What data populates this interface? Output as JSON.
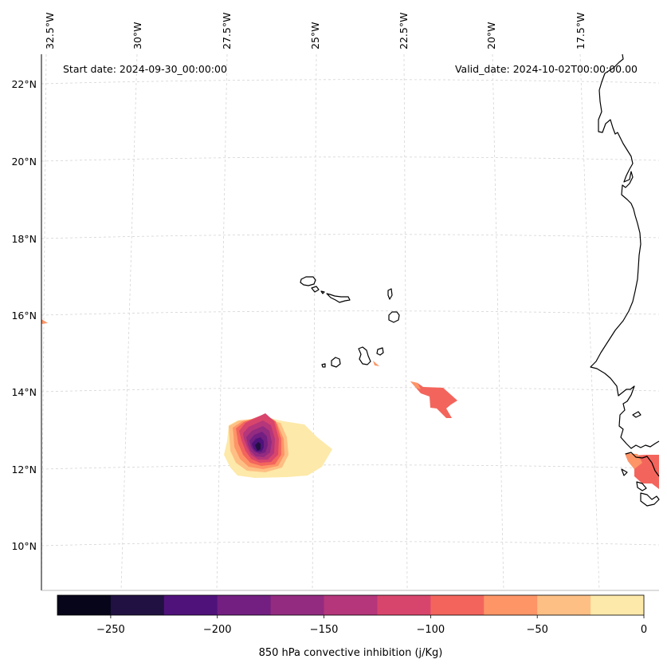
{
  "header": {
    "start_date": "Start date: 2024-09-30_00:00:00",
    "valid_date": "Valid_date: 2024-10-02T00:00:00.00"
  },
  "longitude_labels": [
    "32.5°W",
    "30°W",
    "27.5°W",
    "25°W",
    "22.5°W",
    "20°W",
    "17.5°W"
  ],
  "latitude_labels": [
    "22°N",
    "20°N",
    "18°N",
    "16°N",
    "14°N",
    "12°N",
    "10°N"
  ],
  "colorbar": {
    "label": "850 hPa convective inhibition (j/Kg)",
    "tick_labels": [
      "−250",
      "−200",
      "−150",
      "−100",
      "−50",
      "0"
    ],
    "levels": [
      -275,
      -250,
      -225,
      -200,
      -175,
      -150,
      -125,
      -100,
      -75,
      -50,
      -25,
      0
    ],
    "colors": [
      "#06051a",
      "#211142",
      "#4f127b",
      "#721f81",
      "#932b80",
      "#b5367a",
      "#d8456c",
      "#f3655c",
      "#fd9567",
      "#febf84",
      "#fde9a9"
    ]
  },
  "chart_data": {
    "type": "heatmap",
    "title": "850 hPa convective inhibition (j/Kg)",
    "start_date": "2024-09-30_00:00:00",
    "valid_date": "2024-10-02T00:00:00.00",
    "lon_range": [
      -33,
      -15.5
    ],
    "lat_range": [
      9,
      22.8
    ],
    "value_range": [
      -275,
      0
    ],
    "features": [
      {
        "name": "cin-cell-southwest",
        "center_lat": 12.5,
        "center_lon": -26.3,
        "min_value": -250,
        "max_value": 0
      },
      {
        "name": "cin-cell-east",
        "center_lat": 13.8,
        "center_lon": -21.6,
        "min_value": -125,
        "max_value": -75
      },
      {
        "name": "cin-cell-coast",
        "center_lat": 12.0,
        "center_lon": -16.4,
        "min_value": -125,
        "max_value": -75
      }
    ]
  }
}
